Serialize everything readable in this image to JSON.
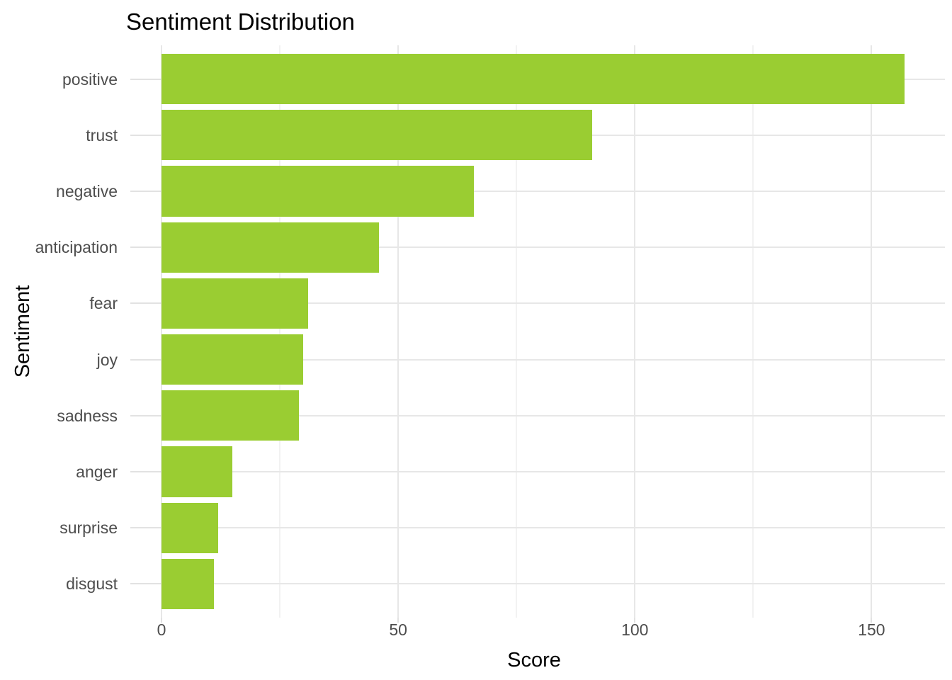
{
  "chart_data": {
    "type": "bar",
    "orientation": "horizontal",
    "title": "Sentiment Distribution",
    "xlabel": "Score",
    "ylabel": "Sentiment",
    "categories": [
      "positive",
      "trust",
      "negative",
      "anticipation",
      "fear",
      "joy",
      "sadness",
      "anger",
      "surprise",
      "disgust"
    ],
    "values": [
      157,
      91,
      66,
      46,
      31,
      30,
      29,
      15,
      12,
      11
    ],
    "x_ticks": [
      0,
      50,
      100,
      150
    ],
    "x_minor_ticks": [
      25,
      75,
      125
    ],
    "xlim": [
      0,
      165.5
    ],
    "bar_color": "#9ACD32",
    "grid": true,
    "legend": false,
    "colors": {
      "background": "#ffffff",
      "major_grid": "#e7e7e7",
      "minor_grid": "#f2f2f2",
      "axis_tick": "#e2e2e2",
      "tick_text": "#4d4d4d",
      "title_text": "#000000"
    }
  }
}
